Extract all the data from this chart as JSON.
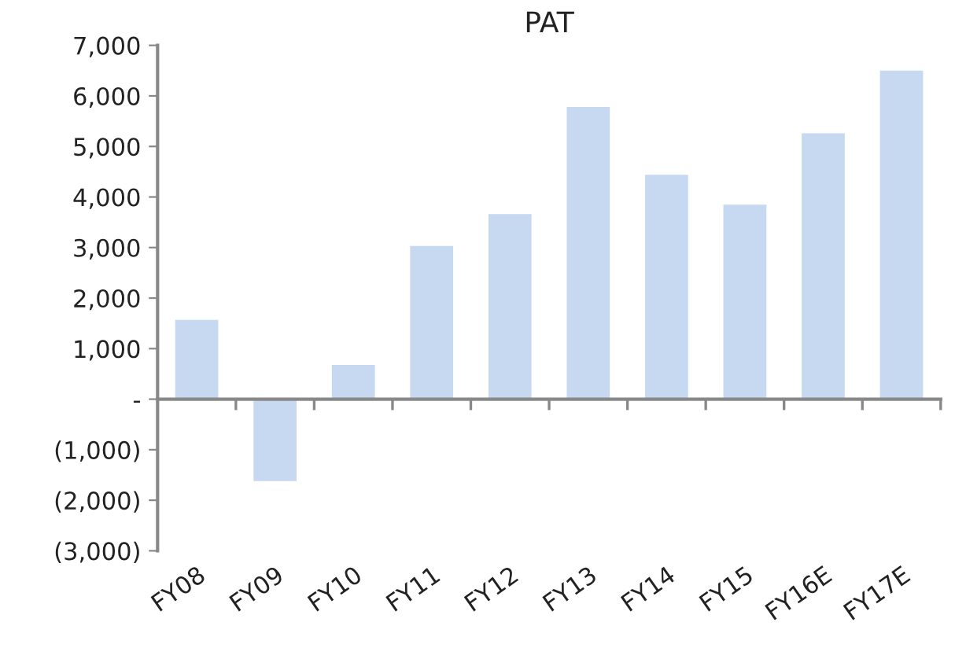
{
  "chart_data": {
    "type": "bar",
    "title": "PAT",
    "categories": [
      "FY08",
      "FY09",
      "FY10",
      "FY11",
      "FY12",
      "FY13",
      "FY14",
      "FY15",
      "FY16E",
      "FY17E"
    ],
    "values": [
      1570,
      -1620,
      680,
      3030,
      3660,
      5780,
      4440,
      3850,
      5260,
      6500
    ],
    "color": "#c6d9f1",
    "ylim": [
      -3000,
      7000
    ],
    "yticks": [
      {
        "value": -3000,
        "label": "(3,000)"
      },
      {
        "value": -2000,
        "label": "(2,000)"
      },
      {
        "value": -1000,
        "label": "(1,000)"
      },
      {
        "value": 0,
        "label": "-"
      },
      {
        "value": 1000,
        "label": "1,000"
      },
      {
        "value": 2000,
        "label": "2,000"
      },
      {
        "value": 3000,
        "label": "3,000"
      },
      {
        "value": 4000,
        "label": "4,000"
      },
      {
        "value": 5000,
        "label": "5,000"
      },
      {
        "value": 6000,
        "label": "6,000"
      },
      {
        "value": 7000,
        "label": "7,000"
      }
    ],
    "legend": false
  }
}
